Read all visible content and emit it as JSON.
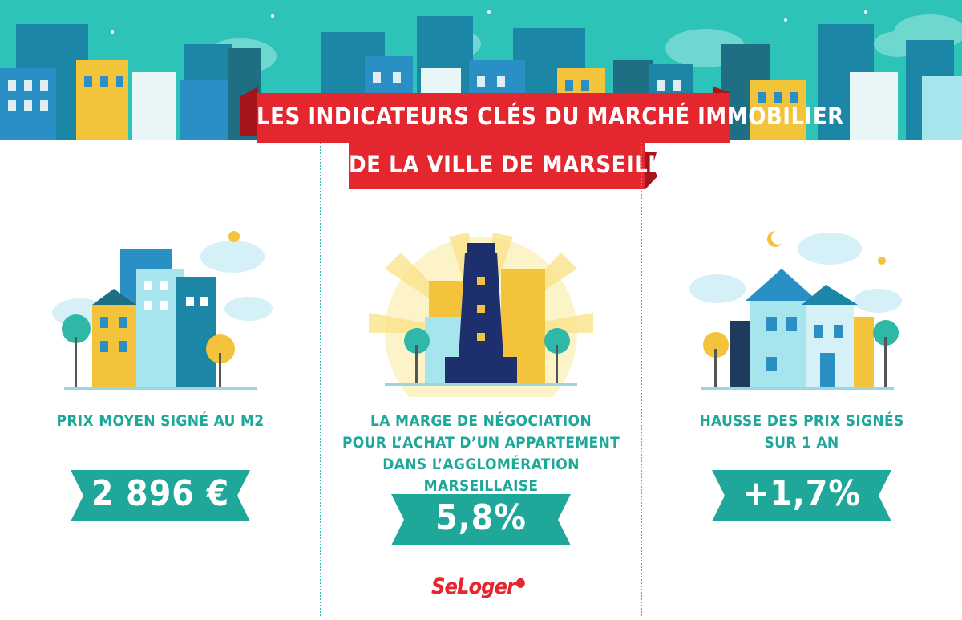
{
  "header": {
    "title_line1": "LES INDICATEURS CLÉS DU MARCHÉ IMMOBILIER",
    "title_line2": "DE LA VILLE DE MARSEILLE"
  },
  "indicators": [
    {
      "label": "PRIX MOYEN SIGNÉ AU M2",
      "value": "2 896 €",
      "illustration": "city-buildings-illustration"
    },
    {
      "label_lines": [
        "LA MARGE DE NÉGOCIATION",
        "POUR L’ACHAT D’UN APPARTEMENT",
        "DANS L’AGGLOMÉRATION MARSEILLAISE"
      ],
      "value": "5,8%",
      "illustration": "lighthouse-illustration"
    },
    {
      "label_lines": [
        "HAUSSE DES PRIX SIGNÉS",
        "SUR 1 AN"
      ],
      "value": "+1,7%",
      "illustration": "house-illustration"
    }
  ],
  "brand": {
    "logo_text": "SeLoger"
  },
  "colors": {
    "teal": "#1fa89a",
    "ribbon_red": "#e4262f",
    "ribbon_dark": "#a8141b",
    "sky": "#2ec3b8"
  }
}
